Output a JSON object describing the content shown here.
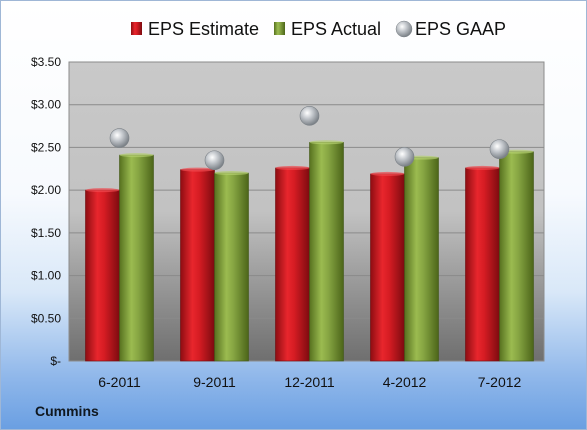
{
  "company": "Cummins",
  "colors": {
    "estimate": "#c8141b",
    "actual": "#7d9c3a",
    "gaap": "#b9bec4"
  },
  "chart_data": {
    "type": "bar",
    "categories": [
      "6-2011",
      "9-2011",
      "12-2011",
      "4-2012",
      "7-2012"
    ],
    "series": [
      {
        "name": "EPS Estimate",
        "values": [
          2.0,
          2.24,
          2.26,
          2.19,
          2.26
        ]
      },
      {
        "name": "EPS Actual",
        "values": [
          2.41,
          2.2,
          2.56,
          2.38,
          2.45
        ]
      },
      {
        "name": "EPS GAAP",
        "marker": "circle",
        "values": [
          2.61,
          2.35,
          2.87,
          2.39,
          2.48
        ]
      }
    ],
    "yticks": [
      {
        "value": 0,
        "label": "$-"
      },
      {
        "value": 0.5,
        "label": "$0.50"
      },
      {
        "value": 1.0,
        "label": "$1.00"
      },
      {
        "value": 1.5,
        "label": "$1.50"
      },
      {
        "value": 2.0,
        "label": "$2.00"
      },
      {
        "value": 2.5,
        "label": "$2.50"
      },
      {
        "value": 3.0,
        "label": "$3.00"
      },
      {
        "value": 3.5,
        "label": "$3.50"
      }
    ],
    "ylim": [
      0,
      3.5
    ],
    "grid": true,
    "legend_position": "top"
  }
}
